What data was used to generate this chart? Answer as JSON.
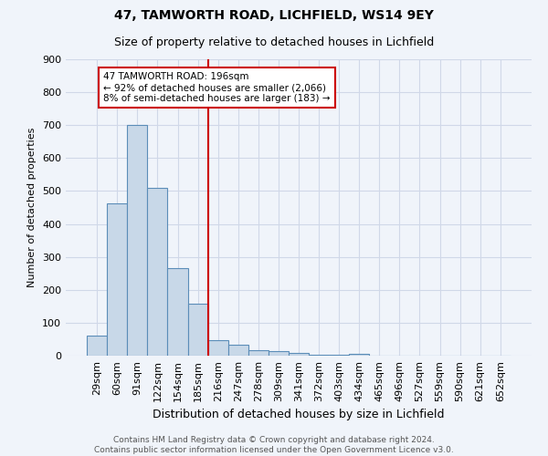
{
  "title1": "47, TAMWORTH ROAD, LICHFIELD, WS14 9EY",
  "title2": "Size of property relative to detached houses in Lichfield",
  "xlabel": "Distribution of detached houses by size in Lichfield",
  "ylabel": "Number of detached properties",
  "footnote1": "Contains HM Land Registry data © Crown copyright and database right 2024.",
  "footnote2": "Contains public sector information licensed under the Open Government Licence v3.0.",
  "categories": [
    "29sqm",
    "60sqm",
    "91sqm",
    "122sqm",
    "154sqm",
    "185sqm",
    "216sqm",
    "247sqm",
    "278sqm",
    "309sqm",
    "341sqm",
    "372sqm",
    "403sqm",
    "434sqm",
    "465sqm",
    "496sqm",
    "527sqm",
    "559sqm",
    "590sqm",
    "621sqm",
    "652sqm"
  ],
  "values": [
    62,
    462,
    700,
    510,
    265,
    158,
    46,
    34,
    18,
    14,
    8,
    3,
    2,
    6,
    0,
    0,
    0,
    0,
    0,
    0,
    0
  ],
  "bar_color": "#c8d8e8",
  "bar_edge_color": "#5b8db8",
  "vline_x": 5.5,
  "vline_color": "#cc0000",
  "annotation_text": "47 TAMWORTH ROAD: 196sqm\n← 92% of detached houses are smaller (2,066)\n8% of semi-detached houses are larger (183) →",
  "annotation_box_color": "white",
  "annotation_box_edge_color": "#cc0000",
  "ylim": [
    0,
    900
  ],
  "yticks": [
    0,
    100,
    200,
    300,
    400,
    500,
    600,
    700,
    800,
    900
  ],
  "grid_color": "#d0d8e8",
  "background_color": "#f0f4fa"
}
